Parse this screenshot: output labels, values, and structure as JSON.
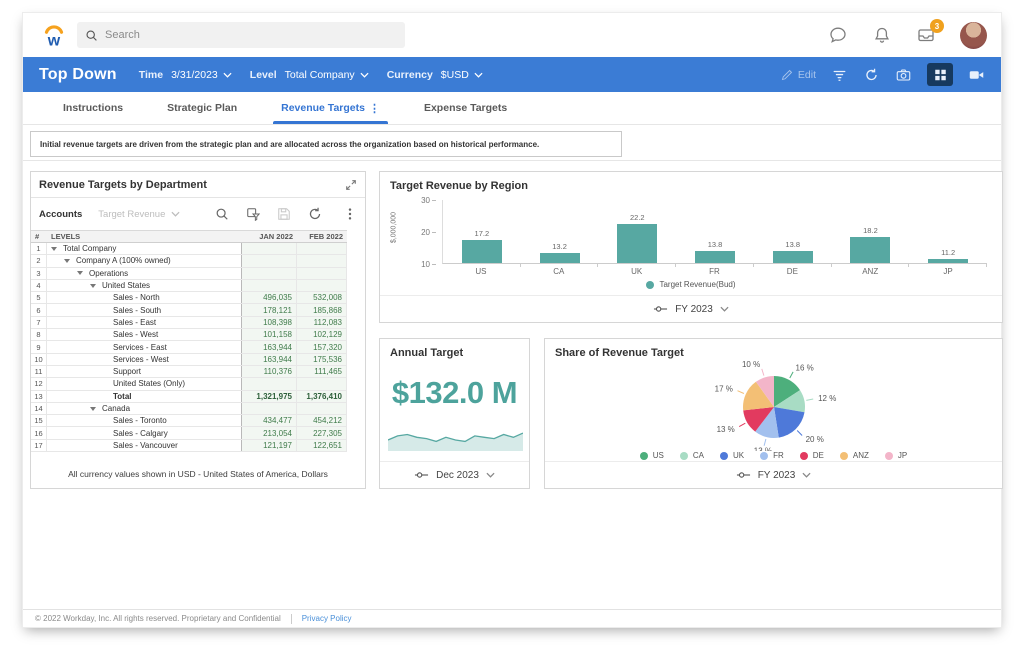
{
  "topbar": {
    "search_placeholder": "Search",
    "inbox_badge": "3"
  },
  "header": {
    "title": "Top Down",
    "controls": [
      {
        "label": "Time",
        "value": "3/31/2023"
      },
      {
        "label": "Level",
        "value": "Total Company"
      },
      {
        "label": "Currency",
        "value": "$USD"
      }
    ],
    "edit_label": "Edit"
  },
  "tabs": [
    {
      "label": "Instructions",
      "active": false,
      "has_menu": false
    },
    {
      "label": "Strategic Plan",
      "active": false,
      "has_menu": false
    },
    {
      "label": "Revenue Targets",
      "active": true,
      "has_menu": true
    },
    {
      "label": "Expense Targets",
      "active": false,
      "has_menu": false
    }
  ],
  "banner_text": "Initial revenue targets are driven from the strategic plan and are allocated across the organization based on historical performance.",
  "grid_panel": {
    "title": "Revenue Targets by Department",
    "toolbar": {
      "accounts_label": "Accounts",
      "dimension_value": "Target Revenue"
    },
    "table": {
      "columns": [
        "#",
        "LEVELS",
        "JAN 2022",
        "FEB 2022"
      ],
      "rows": [
        {
          "num": "1",
          "label": "Total Company",
          "indent": 1,
          "caret": true,
          "bold": false,
          "jan": "",
          "feb": ""
        },
        {
          "num": "2",
          "label": "Company A (100% owned)",
          "indent": 2,
          "caret": true,
          "bold": false,
          "jan": "",
          "feb": ""
        },
        {
          "num": "3",
          "label": "Operations",
          "indent": 3,
          "caret": true,
          "bold": false,
          "jan": "",
          "feb": ""
        },
        {
          "num": "4",
          "label": "United States",
          "indent": 4,
          "caret": true,
          "bold": false,
          "jan": "",
          "feb": ""
        },
        {
          "num": "5",
          "label": "Sales - North",
          "indent": 5,
          "caret": false,
          "bold": false,
          "jan": "496,035",
          "feb": "532,008"
        },
        {
          "num": "6",
          "label": "Sales - South",
          "indent": 5,
          "caret": false,
          "bold": false,
          "jan": "178,121",
          "feb": "185,868"
        },
        {
          "num": "7",
          "label": "Sales - East",
          "indent": 5,
          "caret": false,
          "bold": false,
          "jan": "108,398",
          "feb": "112,083"
        },
        {
          "num": "8",
          "label": "Sales - West",
          "indent": 5,
          "caret": false,
          "bold": false,
          "jan": "101,158",
          "feb": "102,129"
        },
        {
          "num": "9",
          "label": "Services - East",
          "indent": 5,
          "caret": false,
          "bold": false,
          "jan": "163,944",
          "feb": "157,320"
        },
        {
          "num": "10",
          "label": "Services - West",
          "indent": 5,
          "caret": false,
          "bold": false,
          "jan": "163,944",
          "feb": "175,536"
        },
        {
          "num": "11",
          "label": "Support",
          "indent": 5,
          "caret": false,
          "bold": false,
          "jan": "110,376",
          "feb": "111,465"
        },
        {
          "num": "12",
          "label": "United States (Only)",
          "indent": 5,
          "caret": false,
          "bold": false,
          "jan": "",
          "feb": ""
        },
        {
          "num": "13",
          "label": "Total",
          "indent": 5,
          "caret": false,
          "bold": true,
          "jan": "1,321,975",
          "feb": "1,376,410"
        },
        {
          "num": "14",
          "label": "Canada",
          "indent": 4,
          "caret": true,
          "bold": false,
          "jan": "",
          "feb": ""
        },
        {
          "num": "15",
          "label": "Sales - Toronto",
          "indent": 5,
          "caret": false,
          "bold": false,
          "jan": "434,477",
          "feb": "454,212"
        },
        {
          "num": "16",
          "label": "Sales - Calgary",
          "indent": 5,
          "caret": false,
          "bold": false,
          "jan": "213,054",
          "feb": "227,305"
        },
        {
          "num": "17",
          "label": "Sales - Vancouver",
          "indent": 5,
          "caret": false,
          "bold": false,
          "jan": "121,197",
          "feb": "122,651"
        }
      ]
    },
    "footnote": "All currency values shown in USD - United States of America, Dollars"
  },
  "chart_data": [
    {
      "type": "bar",
      "title": "Target Revenue by Region",
      "categories": [
        "US",
        "CA",
        "UK",
        "FR",
        "DE",
        "ANZ",
        "JP"
      ],
      "values": [
        17.2,
        13.2,
        22.2,
        13.8,
        13.8,
        18.2,
        11.2
      ],
      "xlabel": "",
      "ylabel": "$,000,000",
      "ylim": [
        10,
        30
      ],
      "yticks": [
        30,
        20,
        10
      ],
      "legend": [
        "Target Revenue(Bud)"
      ],
      "legend_position": "bottom",
      "series_color": "#57a8a2",
      "period": "FY 2023"
    },
    {
      "type": "area",
      "title": "Annual Target sparkline",
      "values": [
        4,
        5.5,
        6,
        5,
        4.5,
        3.5,
        5,
        4,
        3.5,
        5.5,
        5,
        4.5,
        6,
        5,
        6.5
      ],
      "color": "#57a8a2",
      "period": "Dec 2023"
    },
    {
      "type": "pie",
      "title": "Share of Revenue Target",
      "labels": [
        "US",
        "CA",
        "UK",
        "FR",
        "DE",
        "ANZ",
        "JP"
      ],
      "values": [
        16,
        12,
        20,
        13,
        13,
        17,
        10
      ],
      "label_suffix": " %",
      "colors": [
        "#4daf7c",
        "#a8dcc4",
        "#4e79d9",
        "#a2c0ee",
        "#e23a5f",
        "#f3bf75",
        "#f3b5c9"
      ],
      "legend_position": "bottom",
      "period": "FY 2023"
    }
  ],
  "annual": {
    "title": "Annual Target",
    "value": "$132.0 M",
    "period": "Dec 2023"
  },
  "footer": {
    "copyright": "© 2022 Workday, Inc. All rights reserved. Proprietary and Confidential",
    "privacy_link": "Privacy Policy"
  }
}
